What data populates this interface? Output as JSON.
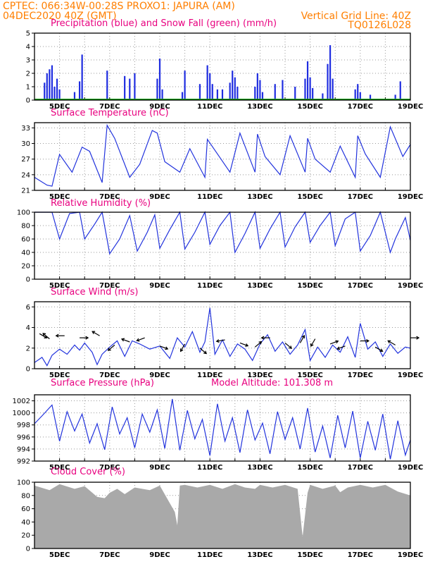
{
  "header": {
    "line1": "CPTEC:   066:34W-00:28S   PROXO1: JAPURA (AM)",
    "line2": "04DEC2020 40Z (GMT)",
    "grid_note": "Vertical Grid Line: 40Z",
    "code": "TQ0126L028"
  },
  "colors": {
    "header": "#ff7f00",
    "panel_title": "#e8007f",
    "line": "#2233dd",
    "precip": "#1f2de0",
    "snow": "#1aa01a",
    "cloud": "#a9a9a9"
  },
  "x_tick_labels": [
    "5DEC",
    "7DEC",
    "9DEC",
    "11DEC",
    "13DEC",
    "15DEC",
    "17DEC",
    "19DEC"
  ],
  "chart_data": [
    {
      "id": "precip",
      "type": "bar",
      "title": "Precipitation (blue) and Snow Fall (green) (mm/h)",
      "ylim": [
        0,
        5
      ],
      "yticks": [
        0,
        1,
        2,
        3,
        4,
        5
      ],
      "series": [
        {
          "name": "Precipitation",
          "points": [
            [
              4.4,
              1.3
            ],
            [
              4.5,
              2.0
            ],
            [
              4.6,
              2.3
            ],
            [
              4.7,
              2.6
            ],
            [
              4.8,
              1.0
            ],
            [
              4.9,
              1.6
            ],
            [
              5.0,
              0.8
            ],
            [
              5.6,
              0.6
            ],
            [
              5.8,
              1.4
            ],
            [
              5.9,
              3.4
            ],
            [
              6.9,
              2.2
            ],
            [
              7.6,
              1.8
            ],
            [
              7.8,
              1.6
            ],
            [
              8.0,
              2.0
            ],
            [
              8.9,
              1.6
            ],
            [
              9.0,
              3.1
            ],
            [
              9.1,
              0.8
            ],
            [
              9.9,
              0.6
            ],
            [
              10.0,
              2.2
            ],
            [
              10.6,
              1.2
            ],
            [
              10.9,
              2.6
            ],
            [
              11.0,
              2.0
            ],
            [
              11.1,
              1.2
            ],
            [
              11.3,
              0.8
            ],
            [
              11.5,
              0.8
            ],
            [
              11.8,
              1.3
            ],
            [
              11.9,
              2.2
            ],
            [
              12.0,
              1.7
            ],
            [
              12.1,
              1.0
            ],
            [
              12.8,
              1.0
            ],
            [
              12.9,
              2.0
            ],
            [
              13.0,
              1.5
            ],
            [
              13.1,
              0.6
            ],
            [
              13.6,
              1.2
            ],
            [
              13.9,
              1.5
            ],
            [
              14.4,
              1.0
            ],
            [
              14.8,
              1.6
            ],
            [
              14.9,
              2.9
            ],
            [
              15.0,
              1.7
            ],
            [
              15.1,
              0.9
            ],
            [
              15.5,
              0.5
            ],
            [
              15.7,
              2.7
            ],
            [
              15.8,
              4.1
            ],
            [
              15.9,
              1.6
            ],
            [
              16.8,
              0.8
            ],
            [
              16.9,
              1.2
            ],
            [
              17.0,
              0.6
            ],
            [
              17.4,
              0.4
            ],
            [
              18.4,
              0.4
            ],
            [
              18.6,
              1.4
            ]
          ]
        },
        {
          "name": "Snow Fall",
          "points": [
            [
              4.0,
              0.05
            ],
            [
              19.0,
              0.05
            ]
          ]
        }
      ]
    },
    {
      "id": "temperature",
      "type": "line",
      "title": "Surface Temperature (nC)",
      "ylim": [
        21,
        34
      ],
      "yticks": [
        21,
        24,
        27,
        30,
        33
      ],
      "series": [
        {
          "name": "Surface Temperature",
          "x": [
            4.0,
            4.5,
            4.7,
            5.0,
            5.5,
            5.9,
            6.2,
            6.7,
            6.9,
            7.2,
            7.8,
            8.2,
            8.7,
            8.9,
            9.2,
            9.8,
            10.2,
            10.8,
            10.9,
            11.3,
            11.8,
            12.2,
            12.8,
            12.9,
            13.2,
            13.8,
            14.2,
            14.8,
            14.9,
            15.2,
            15.8,
            16.2,
            16.8,
            16.9,
            17.2,
            17.8,
            18.2,
            18.7,
            19.0
          ],
          "values": [
            23.5,
            22.0,
            21.8,
            27.9,
            24.5,
            29.3,
            28.5,
            22.5,
            33.5,
            31.0,
            23.5,
            26.0,
            32.5,
            32.0,
            26.5,
            24.5,
            29.0,
            23.5,
            30.8,
            28.0,
            24.5,
            32.0,
            24.5,
            31.8,
            27.5,
            24.0,
            31.5,
            24.5,
            31.0,
            27.0,
            24.5,
            29.5,
            23.5,
            31.5,
            28.0,
            23.5,
            33.2,
            27.5,
            29.8
          ]
        }
      ]
    },
    {
      "id": "humidity",
      "type": "line",
      "title": "Relative Humidity (%)",
      "ylim": [
        0,
        100
      ],
      "yticks": [
        0,
        20,
        40,
        60,
        80,
        100
      ],
      "series": [
        {
          "name": "Relative Humidity",
          "x": [
            4.0,
            4.5,
            4.7,
            5.0,
            5.4,
            5.8,
            6.0,
            6.4,
            6.7,
            7.0,
            7.4,
            7.8,
            8.1,
            8.5,
            8.8,
            9.0,
            9.4,
            9.8,
            10.0,
            10.4,
            10.8,
            11.0,
            11.4,
            11.8,
            12.0,
            12.4,
            12.8,
            13.0,
            13.4,
            13.8,
            14.0,
            14.4,
            14.8,
            15.0,
            15.4,
            15.8,
            16.0,
            16.4,
            16.8,
            17.0,
            17.4,
            17.8,
            18.2,
            18.4,
            18.8,
            19.0
          ],
          "values": [
            100,
            100,
            100,
            60,
            98,
            100,
            60,
            82,
            100,
            38,
            60,
            95,
            42,
            70,
            96,
            46,
            74,
            100,
            45,
            70,
            100,
            52,
            80,
            100,
            40,
            68,
            100,
            46,
            75,
            100,
            48,
            78,
            100,
            55,
            80,
            100,
            50,
            90,
            100,
            42,
            65,
            100,
            40,
            60,
            92,
            58
          ]
        }
      ]
    },
    {
      "id": "wind",
      "type": "line",
      "title": "Surface Wind (m/s)",
      "ylim": [
        0,
        6.5
      ],
      "yticks": [
        0,
        2,
        4,
        6
      ],
      "series": [
        {
          "name": "Surface Wind",
          "x": [
            4.0,
            4.3,
            4.5,
            4.7,
            5.0,
            5.3,
            5.6,
            5.8,
            6.0,
            6.3,
            6.5,
            6.7,
            7.0,
            7.3,
            7.6,
            7.9,
            8.2,
            8.6,
            9.0,
            9.4,
            9.7,
            10.0,
            10.3,
            10.6,
            10.8,
            11.0,
            11.2,
            11.5,
            11.8,
            12.1,
            12.4,
            12.7,
            13.0,
            13.3,
            13.6,
            13.9,
            14.2,
            14.5,
            14.8,
            15.0,
            15.3,
            15.6,
            15.9,
            16.2,
            16.5,
            16.8,
            17.0,
            17.3,
            17.6,
            17.9,
            18.2,
            18.5,
            18.8,
            19.0
          ],
          "values": [
            0.6,
            1.1,
            0.3,
            1.3,
            1.9,
            1.4,
            2.3,
            1.8,
            2.5,
            1.6,
            0.4,
            1.4,
            2.1,
            2.7,
            1.2,
            2.7,
            2.4,
            1.9,
            2.2,
            1.0,
            3.0,
            2.1,
            3.6,
            1.6,
            2.6,
            5.9,
            1.4,
            2.8,
            1.2,
            2.4,
            1.9,
            0.8,
            2.4,
            3.3,
            1.7,
            2.6,
            1.4,
            2.3,
            3.8,
            0.8,
            2.1,
            1.1,
            2.3,
            1.6,
            3.1,
            1.1,
            4.4,
            1.9,
            2.6,
            1.2,
            2.4,
            1.5,
            2.1,
            2.0
          ]
        },
        {
          "name": "Wind Vectors",
          "points": [
            [
              4.2,
              3.4,
              -30
            ],
            [
              4.6,
              2.9,
              140
            ],
            [
              5.2,
              3.2,
              180
            ],
            [
              5.8,
              3.0,
              0
            ],
            [
              6.6,
              3.2,
              150
            ],
            [
              7.2,
              2.3,
              220
            ],
            [
              7.8,
              2.6,
              160
            ],
            [
              8.4,
              3.0,
              200
            ],
            [
              9.0,
              2.2,
              -20
            ],
            [
              10.0,
              2.4,
              240
            ],
            [
              10.6,
              2.0,
              -40
            ],
            [
              11.6,
              2.8,
              190
            ],
            [
              12.2,
              2.5,
              -20
            ],
            [
              12.8,
              2.1,
              40
            ],
            [
              13.4,
              3.0,
              180
            ],
            [
              14.0,
              2.5,
              -40
            ],
            [
              14.6,
              2.5,
              60
            ],
            [
              15.2,
              2.9,
              240
            ],
            [
              15.8,
              2.4,
              20
            ],
            [
              16.4,
              2.2,
              200
            ],
            [
              17.0,
              2.7,
              0
            ],
            [
              17.6,
              2.1,
              -30
            ],
            [
              18.4,
              2.3,
              150
            ],
            [
              19.0,
              3.0,
              0
            ]
          ]
        }
      ]
    },
    {
      "id": "pressure",
      "type": "line",
      "title": "Surface Pressure (hPa)",
      "annotation": "Model Altitude: 101.308 m",
      "ylim": [
        992,
        1003
      ],
      "yticks": [
        992,
        994,
        996,
        998,
        1000,
        1002
      ],
      "series": [
        {
          "name": "Surface Pressure",
          "x": [
            4.0,
            4.3,
            4.7,
            5.0,
            5.3,
            5.6,
            5.9,
            6.2,
            6.5,
            6.8,
            7.1,
            7.4,
            7.7,
            8.0,
            8.3,
            8.6,
            8.9,
            9.2,
            9.5,
            9.8,
            10.1,
            10.4,
            10.7,
            11.0,
            11.3,
            11.6,
            11.9,
            12.2,
            12.5,
            12.8,
            13.1,
            13.4,
            13.7,
            14.0,
            14.3,
            14.6,
            14.9,
            15.2,
            15.5,
            15.8,
            16.1,
            16.4,
            16.7,
            17.0,
            17.3,
            17.6,
            17.9,
            18.2,
            18.5,
            18.8,
            19.0
          ],
          "values": [
            998.2,
            999.5,
            1001.3,
            995.3,
            1000.2,
            997.0,
            999.8,
            995.0,
            998.2,
            993.9,
            1001.0,
            996.5,
            999.2,
            994.2,
            999.8,
            996.8,
            1000.5,
            994.1,
            1002.3,
            993.8,
            1000.4,
            995.7,
            998.9,
            992.9,
            1001.5,
            995.3,
            999.2,
            993.4,
            1000.5,
            995.5,
            998.3,
            993.2,
            1000.2,
            995.6,
            999.2,
            994.0,
            1000.8,
            993.5,
            997.8,
            992.5,
            999.6,
            994.2,
            1000.3,
            992.5,
            998.6,
            993.8,
            999.8,
            992.3,
            998.7,
            993.0,
            995.5
          ]
        }
      ]
    },
    {
      "id": "cloud",
      "type": "area",
      "title": "Cloud Cover (%)",
      "ylim": [
        0,
        100
      ],
      "yticks": [
        0,
        20,
        40,
        60,
        80,
        100
      ],
      "series": [
        {
          "name": "Cloud Cover",
          "x": [
            4.0,
            4.6,
            5.0,
            5.6,
            6.0,
            6.5,
            6.8,
            7.0,
            7.3,
            7.6,
            8.0,
            8.6,
            9.0,
            9.6,
            9.7,
            9.8,
            10.0,
            10.5,
            11.0,
            11.5,
            12.0,
            12.4,
            12.8,
            13.0,
            13.5,
            14.0,
            14.5,
            14.7,
            14.9,
            15.0,
            15.5,
            16.0,
            16.2,
            16.5,
            17.0,
            17.5,
            18.0,
            18.5,
            19.0
          ],
          "values": [
            95,
            88,
            97,
            90,
            94,
            78,
            76,
            84,
            90,
            82,
            92,
            88,
            95,
            55,
            35,
            95,
            96,
            92,
            96,
            90,
            97,
            92,
            90,
            96,
            92,
            96,
            90,
            18,
            84,
            96,
            90,
            95,
            85,
            92,
            96,
            92,
            96,
            86,
            80
          ]
        }
      ]
    }
  ]
}
